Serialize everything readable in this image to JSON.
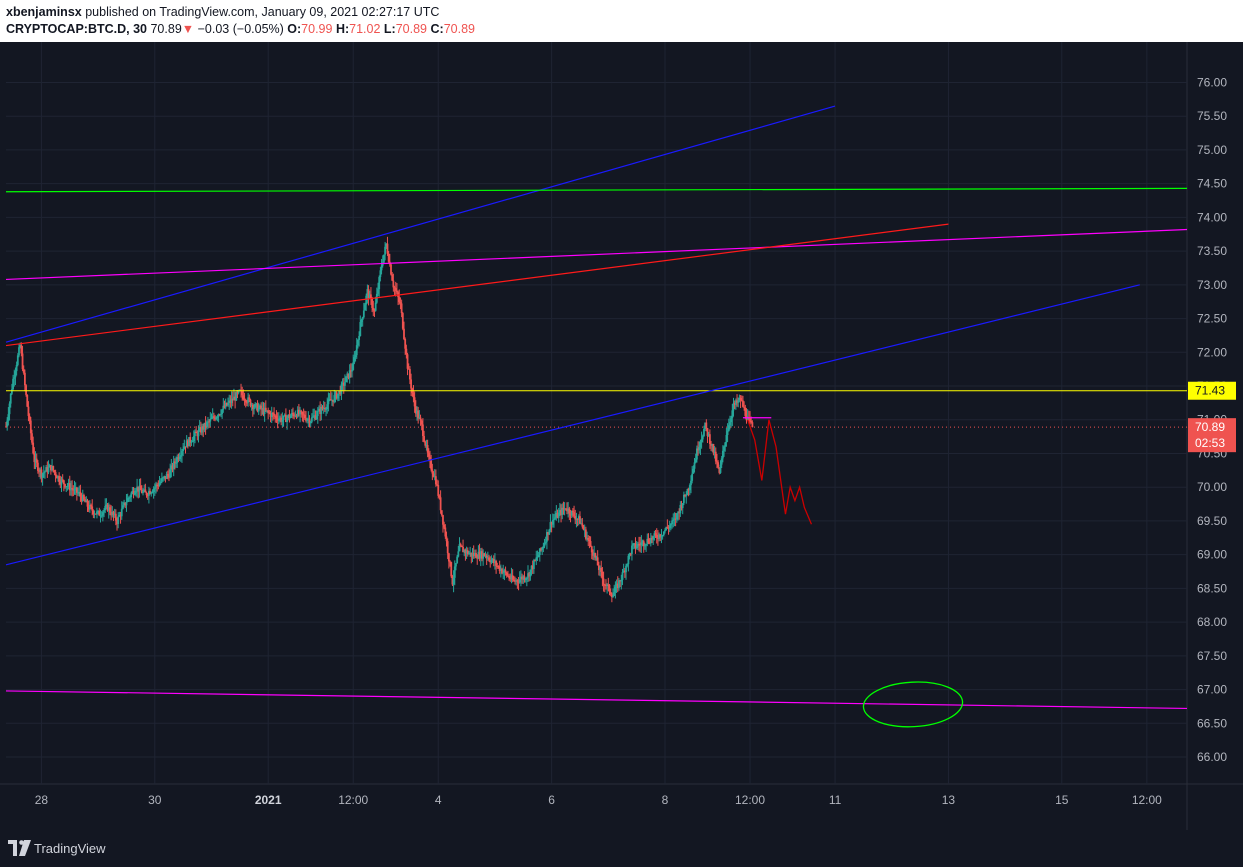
{
  "header": {
    "publisher": "xbenjaminsx",
    "published_text": "published on TradingView.com, January 09, 2021 02:27:17 UTC",
    "symbol": "CRYPTOCAP:BTC.D, 30",
    "last": "70.89",
    "change_arrow": "▼",
    "change": "−0.03 (−0.05%)",
    "o_label": "O:",
    "o_value": "70.99",
    "h_label": "H:",
    "h_value": "71.02",
    "l_label": "L:",
    "l_value": "70.89",
    "c_label": "C:",
    "c_value": "70.89"
  },
  "footer": {
    "brand": "TradingView"
  },
  "chart_data": {
    "type": "candlestick",
    "symbol": "CRYPTOCAP:BTC.D",
    "interval": "30",
    "ylim": [
      65.6,
      76.6
    ],
    "y_ticks": [
      "66.00",
      "66.50",
      "67.00",
      "67.50",
      "68.00",
      "68.50",
      "69.00",
      "69.50",
      "70.00",
      "70.50",
      "71.00",
      "71.50",
      "72.00",
      "72.50",
      "73.00",
      "73.50",
      "74.00",
      "74.50",
      "75.00",
      "75.50",
      "76.00"
    ],
    "x_ticks": [
      {
        "label": "28",
        "x": "2020-12-28"
      },
      {
        "label": "30",
        "x": "2020-12-30"
      },
      {
        "label": "2021",
        "x": "2021-01-01",
        "bold": true
      },
      {
        "label": "12:00",
        "x": "2021-01-02T12:00"
      },
      {
        "label": "4",
        "x": "2021-01-04"
      },
      {
        "label": "6",
        "x": "2021-01-06"
      },
      {
        "label": "8",
        "x": "2021-01-08"
      },
      {
        "label": "12:00",
        "x": "2021-01-09T12:00"
      },
      {
        "label": "11",
        "x": "2021-01-11"
      },
      {
        "label": "13",
        "x": "2021-01-13"
      },
      {
        "label": "15",
        "x": "2021-01-15"
      },
      {
        "label": "12:00",
        "x": "2021-01-16T12:00"
      }
    ],
    "xlim": [
      "2020-12-27T09:00",
      "2021-01-17T05:00"
    ],
    "price_path": [
      [
        "2020-12-27T09:00",
        70.9
      ],
      [
        "2020-12-27T12:00",
        71.6
      ],
      [
        "2020-12-27T15:00",
        72.1
      ],
      [
        "2020-12-27T18:00",
        71.2
      ],
      [
        "2020-12-27T21:00",
        70.4
      ],
      [
        "2020-12-28T00:00",
        70.2
      ],
      [
        "2020-12-28T04:00",
        70.3
      ],
      [
        "2020-12-28T08:00",
        70.1
      ],
      [
        "2020-12-28T12:00",
        70.0
      ],
      [
        "2020-12-28T16:00",
        69.9
      ],
      [
        "2020-12-28T20:00",
        69.7
      ],
      [
        "2020-12-29T00:00",
        69.6
      ],
      [
        "2020-12-29T04:00",
        69.7
      ],
      [
        "2020-12-29T08:00",
        69.5
      ],
      [
        "2020-12-29T12:00",
        69.8
      ],
      [
        "2020-12-29T16:00",
        70.0
      ],
      [
        "2020-12-29T20:00",
        69.9
      ],
      [
        "2020-12-30T00:00",
        70.0
      ],
      [
        "2020-12-30T06:00",
        70.2
      ],
      [
        "2020-12-30T12:00",
        70.6
      ],
      [
        "2020-12-30T18:00",
        70.8
      ],
      [
        "2020-12-31T00:00",
        71.0
      ],
      [
        "2020-12-31T06:00",
        71.2
      ],
      [
        "2020-12-31T12:00",
        71.4
      ],
      [
        "2020-12-31T18:00",
        71.2
      ],
      [
        "2021-01-01T00:00",
        71.1
      ],
      [
        "2021-01-01T06:00",
        71.0
      ],
      [
        "2021-01-01T12:00",
        71.1
      ],
      [
        "2021-01-01T18:00",
        71.0
      ],
      [
        "2021-01-02T00:00",
        71.2
      ],
      [
        "2021-01-02T06:00",
        71.4
      ],
      [
        "2021-01-02T12:00",
        71.8
      ],
      [
        "2021-01-02T15:00",
        72.4
      ],
      [
        "2021-01-02T18:00",
        72.9
      ],
      [
        "2021-01-02T21:00",
        72.6
      ],
      [
        "2021-01-03T00:00",
        73.3
      ],
      [
        "2021-01-03T02:00",
        73.6
      ],
      [
        "2021-01-03T05:00",
        73.0
      ],
      [
        "2021-01-03T08:00",
        72.7
      ],
      [
        "2021-01-03T11:00",
        71.8
      ],
      [
        "2021-01-03T14:00",
        71.2
      ],
      [
        "2021-01-03T17:00",
        70.9
      ],
      [
        "2021-01-03T20:00",
        70.4
      ],
      [
        "2021-01-03T23:00",
        70.1
      ],
      [
        "2021-01-04T03:00",
        69.3
      ],
      [
        "2021-01-04T06:00",
        68.6
      ],
      [
        "2021-01-04T09:00",
        69.1
      ],
      [
        "2021-01-04T14:00",
        69.0
      ],
      [
        "2021-01-04T20:00",
        69.0
      ],
      [
        "2021-01-05T02:00",
        68.8
      ],
      [
        "2021-01-05T08:00",
        68.6
      ],
      [
        "2021-01-05T14:00",
        68.7
      ],
      [
        "2021-01-05T20:00",
        69.1
      ],
      [
        "2021-01-06T00:00",
        69.5
      ],
      [
        "2021-01-06T06:00",
        69.7
      ],
      [
        "2021-01-06T12:00",
        69.5
      ],
      [
        "2021-01-06T18:00",
        69.0
      ],
      [
        "2021-01-06T22:00",
        68.6
      ],
      [
        "2021-01-07T02:00",
        68.4
      ],
      [
        "2021-01-07T06:00",
        68.7
      ],
      [
        "2021-01-07T10:00",
        69.1
      ],
      [
        "2021-01-07T16:00",
        69.2
      ],
      [
        "2021-01-07T22:00",
        69.3
      ],
      [
        "2021-01-08T04:00",
        69.5
      ],
      [
        "2021-01-08T10:00",
        70.0
      ],
      [
        "2021-01-08T14:00",
        70.6
      ],
      [
        "2021-01-08T17:00",
        70.9
      ],
      [
        "2021-01-08T20:00",
        70.6
      ],
      [
        "2021-01-08T23:00",
        70.2
      ],
      [
        "2021-01-09T02:00",
        70.8
      ],
      [
        "2021-01-09T05:00",
        71.2
      ],
      [
        "2021-01-09T08:00",
        71.3
      ],
      [
        "2021-01-09T11:00",
        71.0
      ],
      [
        "2021-01-09T13:00",
        70.89
      ]
    ],
    "horizontal_lines": [
      {
        "price": 71.43,
        "color": "#ffff00",
        "label": "71.43"
      },
      {
        "price": 70.89,
        "color": "#ef5350",
        "dotted": true
      }
    ],
    "trend_lines": [
      {
        "color": "#1a1aff",
        "from": [
          "2020-12-27T09:00",
          72.15
        ],
        "to": [
          "2021-01-11T00:00",
          75.65
        ]
      },
      {
        "color": "#1a1aff",
        "from": [
          "2020-12-27T09:00",
          68.85
        ],
        "to": [
          "2021-01-16T09:00",
          73.0
        ]
      },
      {
        "color": "#ff00ff",
        "from": [
          "2020-12-27T09:00",
          73.08
        ],
        "to": [
          "2021-01-17T05:00",
          73.82
        ]
      },
      {
        "color": "#ff00ff",
        "from": [
          "2020-12-27T09:00",
          66.98
        ],
        "to": [
          "2021-01-17T05:00",
          66.72
        ]
      },
      {
        "color": "#00ff00",
        "from": [
          "2020-12-27T09:00",
          74.38
        ],
        "to": [
          "2021-01-17T05:00",
          74.43
        ]
      },
      {
        "color": "#ff1a1a",
        "from": [
          "2020-12-27T09:00",
          72.1
        ],
        "to": [
          "2021-01-13T00:00",
          73.9
        ]
      },
      {
        "color": "#ff00ff",
        "from": [
          "2021-01-09T09:00",
          71.03
        ],
        "to": [
          "2021-01-09T21:00",
          71.03
        ]
      }
    ],
    "projection_path": {
      "color": "#cc0000",
      "points": [
        [
          "2021-01-09T11:00",
          71.0
        ],
        [
          "2021-01-09T14:00",
          70.7
        ],
        [
          "2021-01-09T17:00",
          70.1
        ],
        [
          "2021-01-09T20:00",
          71.0
        ],
        [
          "2021-01-09T23:00",
          70.6
        ],
        [
          "2021-01-10T03:00",
          69.6
        ],
        [
          "2021-01-10T05:00",
          70.0
        ],
        [
          "2021-01-10T07:00",
          69.8
        ],
        [
          "2021-01-10T09:00",
          70.0
        ],
        [
          "2021-01-10T11:00",
          69.7
        ],
        [
          "2021-01-10T14:00",
          69.45
        ]
      ]
    },
    "ellipse_annotation": {
      "color": "#00ff00",
      "center": [
        "2021-01-12T09:00",
        66.78
      ],
      "rx_hours": 21,
      "ry_price": 0.33
    },
    "last_price": {
      "value": "70.89",
      "countdown": "02:53",
      "color": "#ef5350"
    },
    "colors": {
      "up": "#26a69a",
      "down": "#ef5350",
      "grid": "#1f2433",
      "background": "#131722"
    }
  }
}
